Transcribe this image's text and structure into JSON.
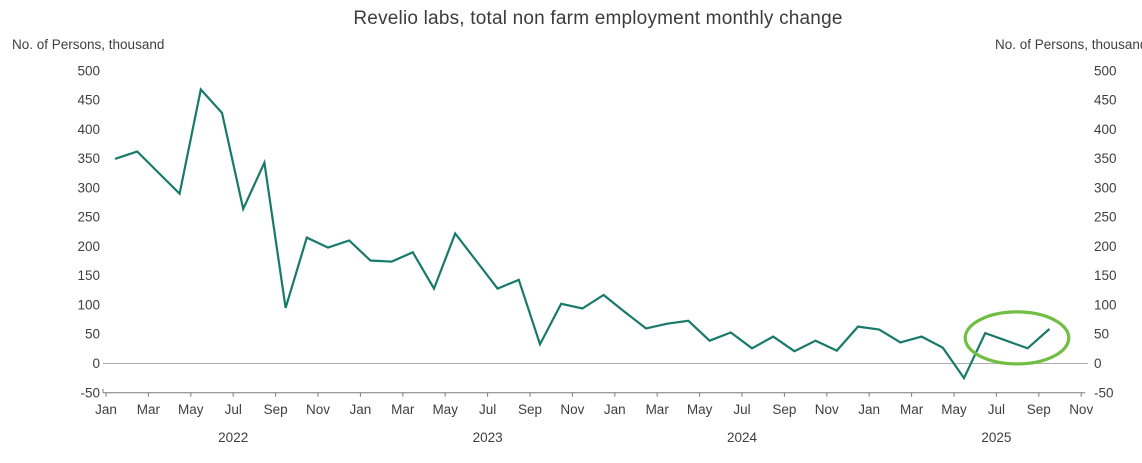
{
  "title": "Revelio labs, total non farm employment monthly change",
  "left_axis_label": "No. of Persons, thousand",
  "right_axis_label": "No. of Persons, thousand",
  "colors": {
    "line": "#187a6a",
    "highlight_ellipse": "#70be44",
    "zero_gridline": "#adadad",
    "axis": "#7a7a7a",
    "text": "#3f3f3f",
    "title_text": "#3c3c3c"
  },
  "y_axis": {
    "ticks": [
      500,
      450,
      400,
      350,
      300,
      250,
      200,
      150,
      100,
      50,
      0,
      -50
    ],
    "shown_on_left": true,
    "shown_on_right": true
  },
  "x_axis": {
    "month_labels_per_year": [
      "Jan",
      "Mar",
      "May",
      "Jul",
      "Sep",
      "Nov"
    ],
    "years": [
      "2022",
      "2023",
      "2024",
      "2025"
    ]
  },
  "chart_data": {
    "type": "line",
    "title": "Revelio labs, total non farm employment monthly change",
    "xlabel": "",
    "ylabel": "No. of Persons, thousand",
    "ylim": [
      -50,
      500
    ],
    "grid": "zero-line-only",
    "legend": "none",
    "x": [
      "2022-01",
      "2022-02",
      "2022-03",
      "2022-04",
      "2022-05",
      "2022-06",
      "2022-07",
      "2022-08",
      "2022-09",
      "2022-10",
      "2022-11",
      "2022-12",
      "2023-01",
      "2023-02",
      "2023-03",
      "2023-04",
      "2023-05",
      "2023-06",
      "2023-07",
      "2023-08",
      "2023-09",
      "2023-10",
      "2023-11",
      "2023-12",
      "2024-01",
      "2024-02",
      "2024-03",
      "2024-04",
      "2024-05",
      "2024-06",
      "2024-07",
      "2024-08",
      "2024-09",
      "2024-10",
      "2024-11",
      "2024-12",
      "2025-01",
      "2025-02",
      "2025-03",
      "2025-04",
      "2025-05",
      "2025-06",
      "2025-07",
      "2025-08",
      "2025-09"
    ],
    "values": [
      350,
      362,
      326,
      290,
      468,
      428,
      264,
      343,
      95,
      215,
      198,
      210,
      176,
      174,
      190,
      128,
      222,
      175,
      128,
      143,
      33,
      102,
      94,
      117,
      88,
      60,
      68,
      73,
      39,
      53,
      26,
      46,
      21,
      39,
      22,
      63,
      58,
      36,
      46,
      27,
      -25,
      52,
      39,
      26,
      58
    ],
    "annotation": {
      "shape": "ellipse",
      "circled_x_range": [
        "2025-06",
        "2025-09"
      ],
      "meaning": "green ellipse highlighting the most recent months"
    }
  }
}
